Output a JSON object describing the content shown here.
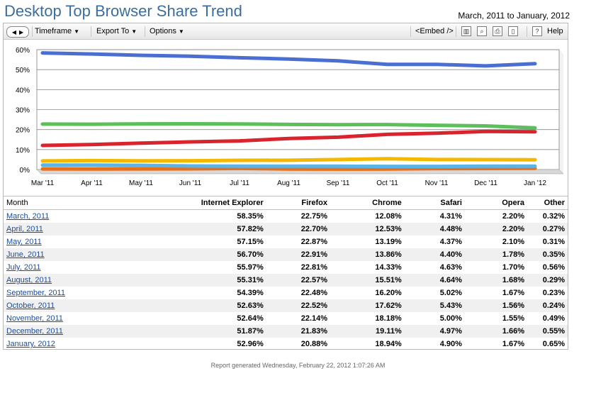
{
  "header": {
    "title": "Desktop Top Browser Share Trend",
    "date_range": "March, 2011 to January, 2012"
  },
  "toolbar": {
    "timeframe": "Timeframe",
    "export": "Export To",
    "options": "Options",
    "embed": "<Embed />",
    "help": "Help"
  },
  "chart_data": {
    "type": "line",
    "categories": [
      "Mar '11",
      "Apr '11",
      "May '11",
      "Jun '11",
      "Jul '11",
      "Aug '11",
      "Sep '11",
      "Oct '11",
      "Nov '11",
      "Dec '11",
      "Jan '12"
    ],
    "ylim": [
      0,
      60
    ],
    "yticks": [
      "0%",
      "10%",
      "20%",
      "30%",
      "40%",
      "50%",
      "60%"
    ],
    "legend_position": "bottom",
    "series": [
      {
        "name": "Internet Explorer",
        "color": "#4a6fd0",
        "values": [
          58.35,
          57.82,
          57.15,
          56.7,
          55.97,
          55.31,
          54.39,
          52.63,
          52.64,
          51.87,
          52.96
        ]
      },
      {
        "name": "Firefox",
        "color": "#5cbf5c",
        "values": [
          22.75,
          22.7,
          22.87,
          22.91,
          22.81,
          22.57,
          22.48,
          22.52,
          22.14,
          21.83,
          20.88
        ]
      },
      {
        "name": "Chrome",
        "color": "#d9242e",
        "values": [
          12.08,
          12.53,
          13.19,
          13.86,
          14.33,
          15.51,
          16.2,
          17.62,
          18.18,
          19.11,
          18.94
        ]
      },
      {
        "name": "Safari",
        "color": "#f5b800",
        "values": [
          4.31,
          4.48,
          4.37,
          4.4,
          4.63,
          4.64,
          5.02,
          5.43,
          5.0,
          4.97,
          4.9
        ]
      },
      {
        "name": "Opera",
        "color": "#5ab4e8",
        "values": [
          2.2,
          2.2,
          2.1,
          1.78,
          1.7,
          1.68,
          1.67,
          1.56,
          1.55,
          1.66,
          1.67
        ]
      },
      {
        "name": "Other",
        "color": "#e8701a",
        "values": [
          0.32,
          0.27,
          0.31,
          0.35,
          0.56,
          0.29,
          0.23,
          0.24,
          0.49,
          0.55,
          0.65
        ]
      }
    ]
  },
  "table": {
    "headers": [
      "Month",
      "Internet Explorer",
      "Firefox",
      "Chrome",
      "Safari",
      "Opera",
      "Other"
    ],
    "rows": [
      [
        "March, 2011",
        "58.35%",
        "22.75%",
        "12.08%",
        "4.31%",
        "2.20%",
        "0.32%"
      ],
      [
        "April, 2011",
        "57.82%",
        "22.70%",
        "12.53%",
        "4.48%",
        "2.20%",
        "0.27%"
      ],
      [
        "May, 2011",
        "57.15%",
        "22.87%",
        "13.19%",
        "4.37%",
        "2.10%",
        "0.31%"
      ],
      [
        "June, 2011",
        "56.70%",
        "22.91%",
        "13.86%",
        "4.40%",
        "1.78%",
        "0.35%"
      ],
      [
        "July, 2011",
        "55.97%",
        "22.81%",
        "14.33%",
        "4.63%",
        "1.70%",
        "0.56%"
      ],
      [
        "August, 2011",
        "55.31%",
        "22.57%",
        "15.51%",
        "4.64%",
        "1.68%",
        "0.29%"
      ],
      [
        "September, 2011",
        "54.39%",
        "22.48%",
        "16.20%",
        "5.02%",
        "1.67%",
        "0.23%"
      ],
      [
        "October, 2011",
        "52.63%",
        "22.52%",
        "17.62%",
        "5.43%",
        "1.56%",
        "0.24%"
      ],
      [
        "November, 2011",
        "52.64%",
        "22.14%",
        "18.18%",
        "5.00%",
        "1.55%",
        "0.49%"
      ],
      [
        "December, 2011",
        "51.87%",
        "21.83%",
        "19.11%",
        "4.97%",
        "1.66%",
        "0.55%"
      ],
      [
        "January, 2012",
        "52.96%",
        "20.88%",
        "18.94%",
        "4.90%",
        "1.67%",
        "0.65%"
      ]
    ]
  },
  "footer": {
    "text": "Report generated Wednesday, February 22, 2012 1:07:26 AM"
  }
}
